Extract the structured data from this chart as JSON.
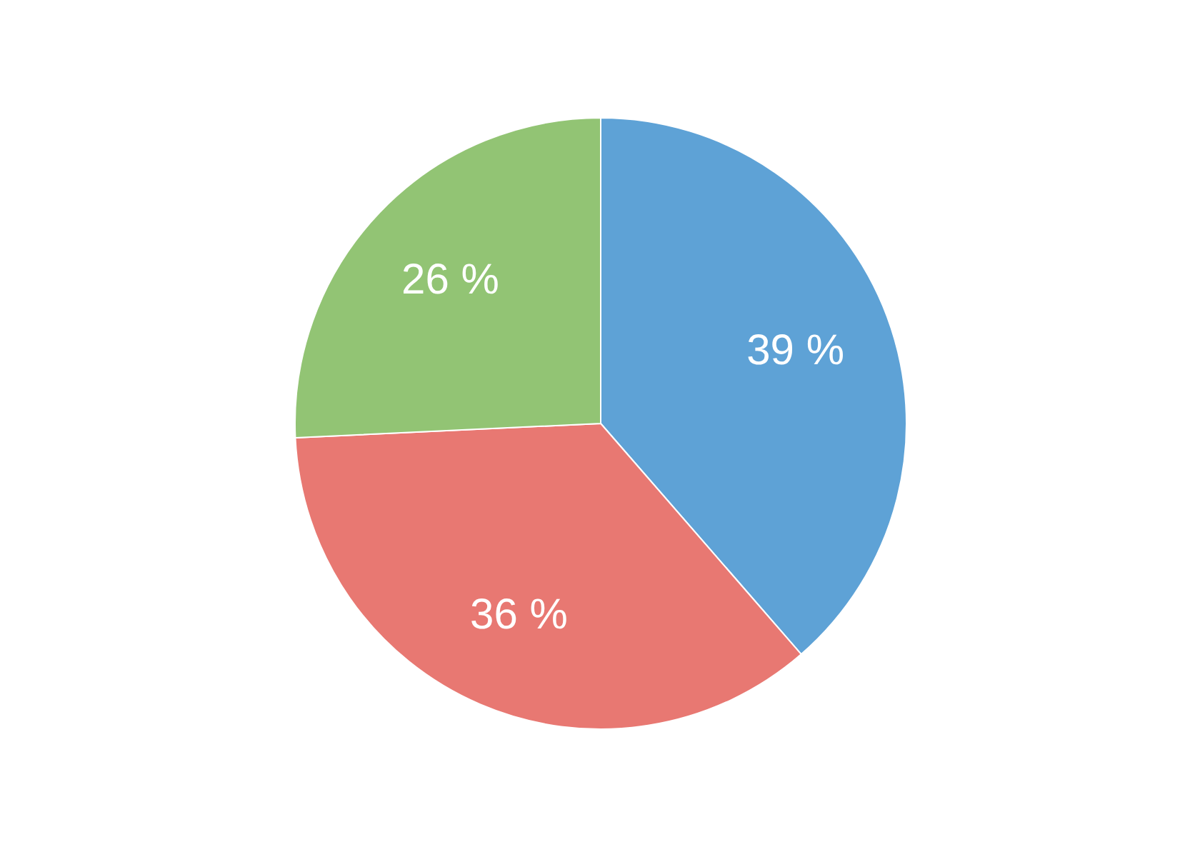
{
  "chart_data": {
    "type": "pie",
    "categories": [
      null,
      null,
      null
    ],
    "values": [
      39,
      36,
      26
    ],
    "colors": [
      "#5ea2d6",
      "#e87872",
      "#92c474"
    ],
    "value_labels": [
      "39 %",
      "36 %",
      "26 %"
    ]
  }
}
